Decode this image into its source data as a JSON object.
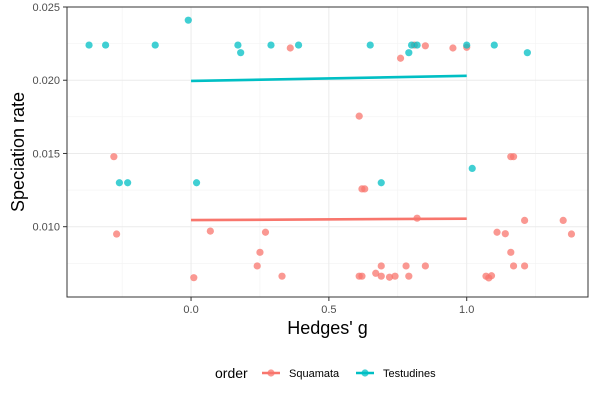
{
  "chart_data": {
    "type": "scatter",
    "xlabel": "Hedges' g",
    "ylabel": "Speciation rate",
    "xlim": [
      -0.45,
      1.44
    ],
    "ylim": [
      0.0052,
      0.025
    ],
    "x_ticks": [
      0.0,
      0.5,
      1.0
    ],
    "x_tick_labels": [
      "0.0",
      "0.5",
      "1.0"
    ],
    "y_ticks": [
      0.01,
      0.015,
      0.02,
      0.025
    ],
    "y_tick_labels": [
      "0.010",
      "0.015",
      "0.020",
      "0.025"
    ],
    "grid": true,
    "legend": {
      "title": "order",
      "placement": "bottom"
    },
    "series": [
      {
        "name": "Squamata",
        "color": "#F8766D",
        "points": [
          {
            "x": 0.36,
            "y": 0.0222
          },
          {
            "x": 0.81,
            "y": 0.0224
          },
          {
            "x": 0.76,
            "y": 0.0215
          },
          {
            "x": 0.85,
            "y": 0.02235
          },
          {
            "x": 0.95,
            "y": 0.0222
          },
          {
            "x": 1.0,
            "y": 0.02225
          },
          {
            "x": 0.61,
            "y": 0.01755
          },
          {
            "x": -0.28,
            "y": 0.01478
          },
          {
            "x": 1.16,
            "y": 0.01478
          },
          {
            "x": 1.17,
            "y": 0.01478
          },
          {
            "x": 0.62,
            "y": 0.01258
          },
          {
            "x": 0.63,
            "y": 0.01258
          },
          {
            "x": 0.82,
            "y": 0.01058
          },
          {
            "x": 1.21,
            "y": 0.01043
          },
          {
            "x": 1.35,
            "y": 0.01043
          },
          {
            "x": -0.27,
            "y": 0.0095
          },
          {
            "x": 0.07,
            "y": 0.0097
          },
          {
            "x": 0.27,
            "y": 0.00962
          },
          {
            "x": 1.11,
            "y": 0.00962
          },
          {
            "x": 1.14,
            "y": 0.00952
          },
          {
            "x": 1.38,
            "y": 0.0095
          },
          {
            "x": 0.25,
            "y": 0.00825
          },
          {
            "x": 1.16,
            "y": 0.00825
          },
          {
            "x": 0.24,
            "y": 0.00732
          },
          {
            "x": 0.69,
            "y": 0.00732
          },
          {
            "x": 0.78,
            "y": 0.00732
          },
          {
            "x": 0.85,
            "y": 0.00732
          },
          {
            "x": 1.17,
            "y": 0.00732
          },
          {
            "x": 1.21,
            "y": 0.00732
          },
          {
            "x": 0.01,
            "y": 0.00652
          },
          {
            "x": 0.33,
            "y": 0.00662
          },
          {
            "x": 0.61,
            "y": 0.00662
          },
          {
            "x": 0.62,
            "y": 0.00662
          },
          {
            "x": 0.67,
            "y": 0.00682
          },
          {
            "x": 0.69,
            "y": 0.00662
          },
          {
            "x": 0.72,
            "y": 0.00655
          },
          {
            "x": 0.74,
            "y": 0.00662
          },
          {
            "x": 0.79,
            "y": 0.00662
          },
          {
            "x": 1.07,
            "y": 0.00662
          },
          {
            "x": 1.08,
            "y": 0.0065
          },
          {
            "x": 1.09,
            "y": 0.00665
          }
        ],
        "trend": {
          "x": [
            0.0,
            1.0
          ],
          "y": [
            0.01045,
            0.01055
          ]
        }
      },
      {
        "name": "Testudines",
        "color": "#00BFC4",
        "points": [
          {
            "x": -0.01,
            "y": 0.0241
          },
          {
            "x": -0.37,
            "y": 0.0224
          },
          {
            "x": -0.31,
            "y": 0.0224
          },
          {
            "x": -0.13,
            "y": 0.0224
          },
          {
            "x": 0.17,
            "y": 0.0224
          },
          {
            "x": 0.29,
            "y": 0.0224
          },
          {
            "x": 0.39,
            "y": 0.0224
          },
          {
            "x": 0.65,
            "y": 0.0224
          },
          {
            "x": 0.8,
            "y": 0.0224
          },
          {
            "x": 0.82,
            "y": 0.0224
          },
          {
            "x": 1.0,
            "y": 0.0224
          },
          {
            "x": 1.1,
            "y": 0.0224
          },
          {
            "x": 0.18,
            "y": 0.02188
          },
          {
            "x": 0.79,
            "y": 0.02188
          },
          {
            "x": 1.22,
            "y": 0.02188
          },
          {
            "x": 1.02,
            "y": 0.01398
          },
          {
            "x": -0.26,
            "y": 0.013
          },
          {
            "x": -0.23,
            "y": 0.013
          },
          {
            "x": 0.02,
            "y": 0.013
          },
          {
            "x": 0.69,
            "y": 0.013
          }
        ],
        "trend": {
          "x": [
            0.0,
            1.0
          ],
          "y": [
            0.01995,
            0.0203
          ]
        }
      }
    ]
  }
}
